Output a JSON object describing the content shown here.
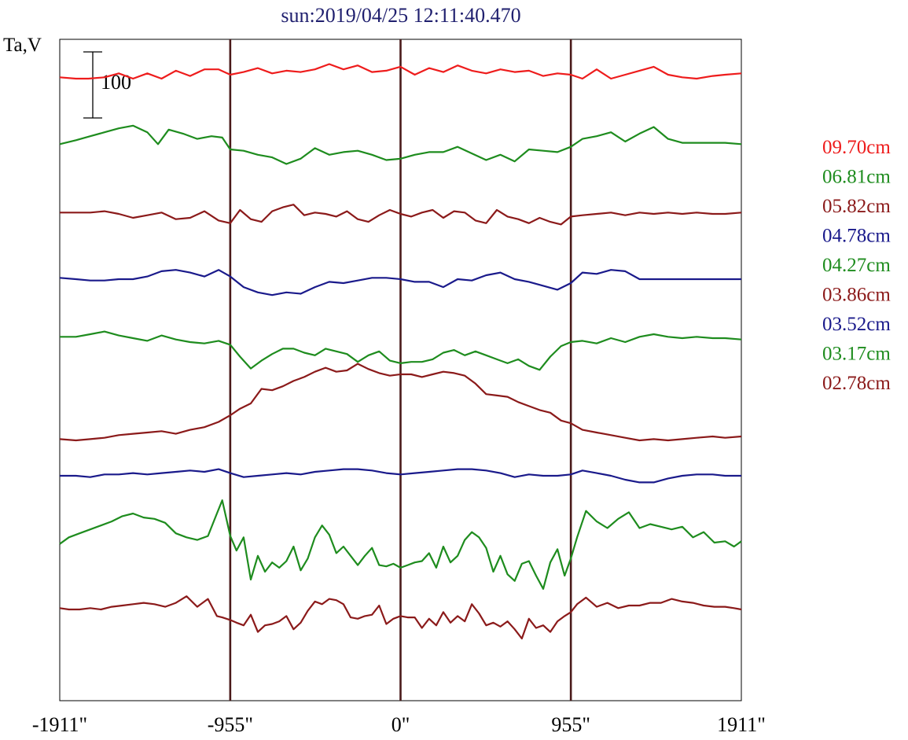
{
  "chart_data": {
    "type": "line",
    "title": "sun:2019/04/25 12:11:40.470",
    "ylabel": "Ta,V",
    "scale_bar_label": "100",
    "scale_bar_value": 100,
    "xlim": [
      -1911,
      1911
    ],
    "x_ticks": [
      -1911,
      -955,
      0,
      955,
      1911
    ],
    "x_tick_labels": [
      "-1911\"",
      "-955\"",
      "0\"",
      "955\"",
      "1911\""
    ],
    "vertical_markers": [
      -955,
      0,
      955
    ],
    "legend_placement": "right",
    "marker_color": "#4a1a1a",
    "series": [
      {
        "name": "09.70cm",
        "color": "#ee1c1c",
        "baseline": 100,
        "x": [
          -1911,
          -1820,
          -1750,
          -1660,
          -1580,
          -1500,
          -1420,
          -1340,
          -1260,
          -1180,
          -1100,
          -1020,
          -955,
          -880,
          -800,
          -720,
          -640,
          -560,
          -480,
          -400,
          -320,
          -240,
          -160,
          -80,
          0,
          80,
          160,
          240,
          320,
          400,
          480,
          560,
          640,
          720,
          800,
          880,
          955,
          1020,
          1100,
          1180,
          1260,
          1340,
          1420,
          1500,
          1580,
          1660,
          1750,
          1820,
          1911
        ],
        "y": [
          2,
          0,
          0,
          2,
          8,
          0,
          8,
          0,
          12,
          4,
          14,
          14,
          6,
          10,
          16,
          8,
          12,
          10,
          14,
          22,
          14,
          20,
          10,
          12,
          18,
          6,
          16,
          10,
          20,
          12,
          8,
          14,
          10,
          12,
          4,
          8,
          6,
          0,
          14,
          0,
          6,
          12,
          18,
          6,
          2,
          0,
          4,
          6,
          8
        ]
      },
      {
        "name": "06.81cm",
        "color": "#1e8c1e",
        "baseline": 185,
        "x": [
          -1911,
          -1820,
          -1740,
          -1660,
          -1580,
          -1500,
          -1420,
          -1360,
          -1300,
          -1220,
          -1140,
          -1060,
          -1000,
          -955,
          -880,
          -800,
          -720,
          -640,
          -560,
          -480,
          -400,
          -320,
          -240,
          -160,
          -80,
          0,
          80,
          160,
          240,
          320,
          400,
          480,
          560,
          640,
          720,
          800,
          880,
          955,
          1020,
          1100,
          1180,
          1260,
          1340,
          1420,
          1500,
          1580,
          1660,
          1750,
          1820,
          1911
        ],
        "y": [
          2,
          8,
          14,
          20,
          26,
          30,
          20,
          2,
          24,
          18,
          10,
          14,
          12,
          -6,
          -8,
          -14,
          -18,
          -28,
          -20,
          -4,
          -14,
          -10,
          -8,
          -14,
          -22,
          -20,
          -14,
          -10,
          -10,
          -2,
          -12,
          -22,
          -14,
          -24,
          -6,
          -8,
          -10,
          -2,
          10,
          14,
          20,
          6,
          18,
          28,
          10,
          4,
          4,
          4,
          4,
          2
        ]
      },
      {
        "name": "05.82cm",
        "color": "#8b1a1a",
        "baseline": 272,
        "x": [
          -1911,
          -1820,
          -1740,
          -1660,
          -1580,
          -1500,
          -1420,
          -1340,
          -1260,
          -1180,
          -1100,
          -1020,
          -955,
          -900,
          -840,
          -780,
          -720,
          -660,
          -600,
          -540,
          -480,
          -420,
          -360,
          -300,
          -240,
          -180,
          -120,
          -60,
          0,
          60,
          120,
          180,
          240,
          300,
          360,
          420,
          480,
          540,
          600,
          660,
          720,
          780,
          840,
          900,
          955,
          1020,
          1100,
          1180,
          1260,
          1340,
          1420,
          1500,
          1580,
          1660,
          1750,
          1820,
          1911
        ],
        "y": [
          2,
          2,
          2,
          4,
          0,
          -6,
          -2,
          2,
          -8,
          -6,
          4,
          -10,
          -14,
          6,
          -8,
          -12,
          4,
          10,
          14,
          -2,
          2,
          0,
          -4,
          4,
          -8,
          -12,
          -2,
          6,
          0,
          -4,
          2,
          6,
          -6,
          4,
          2,
          -10,
          -14,
          6,
          -4,
          -8,
          -14,
          -6,
          -12,
          -16,
          -4,
          -2,
          0,
          2,
          -2,
          2,
          0,
          2,
          0,
          2,
          0,
          0,
          2
        ]
      },
      {
        "name": "04.78cm",
        "color": "#1a1a8b",
        "baseline": 355,
        "x": [
          -1911,
          -1820,
          -1740,
          -1660,
          -1580,
          -1500,
          -1420,
          -1340,
          -1260,
          -1180,
          -1100,
          -1020,
          -955,
          -880,
          -800,
          -720,
          -640,
          -560,
          -480,
          -400,
          -320,
          -240,
          -160,
          -80,
          0,
          80,
          160,
          240,
          320,
          400,
          480,
          560,
          640,
          720,
          800,
          880,
          955,
          1020,
          1100,
          1180,
          1260,
          1340,
          1420,
          1500,
          1580,
          1660,
          1750,
          1820,
          1911
        ],
        "y": [
          2,
          0,
          -2,
          -2,
          0,
          0,
          4,
          12,
          14,
          10,
          4,
          14,
          4,
          -12,
          -20,
          -24,
          -20,
          -22,
          -12,
          -4,
          -6,
          -2,
          2,
          2,
          0,
          -4,
          -4,
          -12,
          0,
          -2,
          6,
          10,
          0,
          -4,
          -10,
          -16,
          -6,
          10,
          8,
          14,
          12,
          0,
          0,
          0,
          0,
          0,
          0,
          0,
          0
        ]
      },
      {
        "name": "04.27cm",
        "color": "#1e8c1e",
        "baseline": 430,
        "x": [
          -1911,
          -1820,
          -1740,
          -1660,
          -1580,
          -1500,
          -1420,
          -1340,
          -1260,
          -1180,
          -1100,
          -1020,
          -955,
          -900,
          -840,
          -780,
          -720,
          -660,
          -600,
          -540,
          -480,
          -420,
          -360,
          -300,
          -240,
          -180,
          -120,
          -60,
          0,
          60,
          120,
          180,
          240,
          300,
          360,
          420,
          480,
          540,
          600,
          660,
          720,
          780,
          840,
          900,
          955,
          1020,
          1100,
          1180,
          1260,
          1340,
          1420,
          1500,
          1580,
          1660,
          1750,
          1820,
          1911
        ],
        "y": [
          2,
          2,
          6,
          10,
          4,
          0,
          -4,
          4,
          -2,
          -6,
          -8,
          -4,
          -10,
          -28,
          -46,
          -34,
          -24,
          -16,
          -16,
          -22,
          -26,
          -16,
          -20,
          -24,
          -36,
          -26,
          -20,
          -34,
          -38,
          -36,
          -36,
          -32,
          -22,
          -18,
          -26,
          -20,
          -26,
          -32,
          -38,
          -32,
          -42,
          -48,
          -28,
          -12,
          -6,
          -4,
          -8,
          0,
          -6,
          2,
          6,
          2,
          0,
          2,
          0,
          0,
          -2
        ]
      },
      {
        "name": "03.86cm",
        "color": "#8b1a1a",
        "baseline": 555,
        "x": [
          -1911,
          -1820,
          -1740,
          -1660,
          -1580,
          -1500,
          -1420,
          -1340,
          -1260,
          -1180,
          -1100,
          -1020,
          -955,
          -900,
          -840,
          -780,
          -720,
          -660,
          -600,
          -540,
          -480,
          -420,
          -360,
          -300,
          -240,
          -180,
          -120,
          -60,
          0,
          60,
          120,
          180,
          240,
          300,
          360,
          420,
          480,
          540,
          600,
          660,
          720,
          780,
          840,
          900,
          955,
          1020,
          1100,
          1180,
          1260,
          1340,
          1420,
          1500,
          1580,
          1660,
          1750,
          1820,
          1911
        ],
        "y": [
          -4,
          -6,
          -4,
          -2,
          2,
          4,
          6,
          8,
          4,
          10,
          14,
          22,
          32,
          42,
          50,
          72,
          70,
          76,
          84,
          90,
          98,
          104,
          98,
          100,
          110,
          102,
          96,
          92,
          94,
          94,
          90,
          94,
          98,
          96,
          92,
          80,
          64,
          62,
          60,
          52,
          46,
          40,
          36,
          24,
          20,
          10,
          6,
          2,
          -2,
          -6,
          -4,
          -6,
          -4,
          -2,
          0,
          -2,
          0
        ]
      },
      {
        "name": "03.52cm",
        "color": "#1a1a8b",
        "baseline": 605,
        "x": [
          -1911,
          -1820,
          -1740,
          -1660,
          -1580,
          -1500,
          -1420,
          -1340,
          -1260,
          -1180,
          -1100,
          -1020,
          -955,
          -880,
          -800,
          -720,
          -640,
          -560,
          -480,
          -400,
          -320,
          -240,
          -160,
          -80,
          0,
          80,
          160,
          240,
          320,
          400,
          480,
          560,
          640,
          720,
          800,
          880,
          955,
          1020,
          1100,
          1180,
          1260,
          1340,
          1420,
          1500,
          1580,
          1660,
          1750,
          1820,
          1911
        ],
        "y": [
          0,
          0,
          -2,
          2,
          2,
          4,
          2,
          4,
          6,
          8,
          6,
          10,
          4,
          -2,
          0,
          2,
          4,
          2,
          6,
          8,
          10,
          10,
          8,
          4,
          2,
          4,
          6,
          8,
          10,
          10,
          8,
          4,
          -2,
          2,
          0,
          0,
          2,
          8,
          4,
          0,
          -6,
          -10,
          -10,
          -4,
          0,
          2,
          2,
          0,
          0
        ]
      },
      {
        "name": "03.17cm",
        "color": "#1e8c1e",
        "baseline": 690,
        "x": [
          -1911,
          -1860,
          -1800,
          -1740,
          -1680,
          -1620,
          -1560,
          -1500,
          -1440,
          -1380,
          -1320,
          -1260,
          -1200,
          -1140,
          -1080,
          -1030,
          -1000,
          -955,
          -920,
          -880,
          -840,
          -800,
          -760,
          -720,
          -680,
          -640,
          -600,
          -560,
          -520,
          -480,
          -440,
          -400,
          -360,
          -320,
          -280,
          -240,
          -200,
          -160,
          -120,
          -80,
          -40,
          0,
          40,
          80,
          120,
          160,
          200,
          240,
          280,
          320,
          360,
          400,
          440,
          480,
          520,
          560,
          600,
          640,
          680,
          720,
          760,
          800,
          840,
          880,
          920,
          955,
          990,
          1040,
          1100,
          1160,
          1220,
          1280,
          1340,
          1400,
          1460,
          1520,
          1580,
          1640,
          1700,
          1760,
          1820,
          1870,
          1911
        ],
        "y": [
          -2,
          8,
          14,
          20,
          26,
          32,
          40,
          44,
          38,
          36,
          30,
          14,
          8,
          4,
          10,
          44,
          64,
          10,
          -12,
          8,
          -56,
          -20,
          -44,
          -30,
          -38,
          -28,
          -6,
          -42,
          -24,
          8,
          26,
          12,
          -16,
          -6,
          -20,
          -34,
          -20,
          -8,
          -34,
          -36,
          -32,
          -38,
          -34,
          -30,
          -28,
          -16,
          -38,
          -6,
          -30,
          -20,
          4,
          16,
          8,
          -8,
          -44,
          -20,
          -48,
          -58,
          -32,
          -28,
          -50,
          -70,
          -30,
          -10,
          -50,
          -24,
          8,
          48,
          32,
          22,
          36,
          46,
          22,
          28,
          24,
          20,
          24,
          8,
          16,
          0,
          2,
          -6,
          2
        ]
      },
      {
        "name": "02.78cm",
        "color": "#8b1a1a",
        "baseline": 775,
        "x": [
          -1911,
          -1860,
          -1800,
          -1740,
          -1680,
          -1620,
          -1560,
          -1500,
          -1440,
          -1380,
          -1320,
          -1260,
          -1200,
          -1140,
          -1080,
          -1030,
          -1000,
          -955,
          -920,
          -880,
          -840,
          -800,
          -760,
          -720,
          -680,
          -640,
          -600,
          -560,
          -520,
          -480,
          -440,
          -400,
          -360,
          -320,
          -280,
          -240,
          -200,
          -160,
          -120,
          -80,
          -40,
          0,
          40,
          80,
          120,
          160,
          200,
          240,
          280,
          320,
          360,
          400,
          440,
          480,
          520,
          560,
          600,
          640,
          680,
          720,
          760,
          800,
          840,
          880,
          920,
          955,
          990,
          1040,
          1100,
          1160,
          1220,
          1280,
          1340,
          1400,
          1460,
          1520,
          1580,
          1640,
          1700,
          1760,
          1820,
          1870,
          1911
        ],
        "y": [
          2,
          0,
          0,
          2,
          0,
          4,
          6,
          8,
          10,
          8,
          4,
          10,
          20,
          4,
          16,
          -10,
          -12,
          -16,
          -20,
          -24,
          -8,
          -34,
          -24,
          -22,
          -18,
          -10,
          -30,
          -20,
          -2,
          12,
          8,
          16,
          14,
          8,
          -12,
          -14,
          -10,
          -8,
          6,
          -22,
          -14,
          -10,
          -12,
          -12,
          -28,
          -14,
          -24,
          -4,
          -20,
          -10,
          -18,
          8,
          -6,
          -24,
          -20,
          -26,
          -18,
          -30,
          -44,
          -14,
          -28,
          -24,
          -34,
          -18,
          -10,
          -4,
          8,
          18,
          4,
          10,
          2,
          6,
          6,
          10,
          10,
          16,
          12,
          10,
          6,
          4,
          4,
          2,
          0
        ]
      }
    ]
  }
}
